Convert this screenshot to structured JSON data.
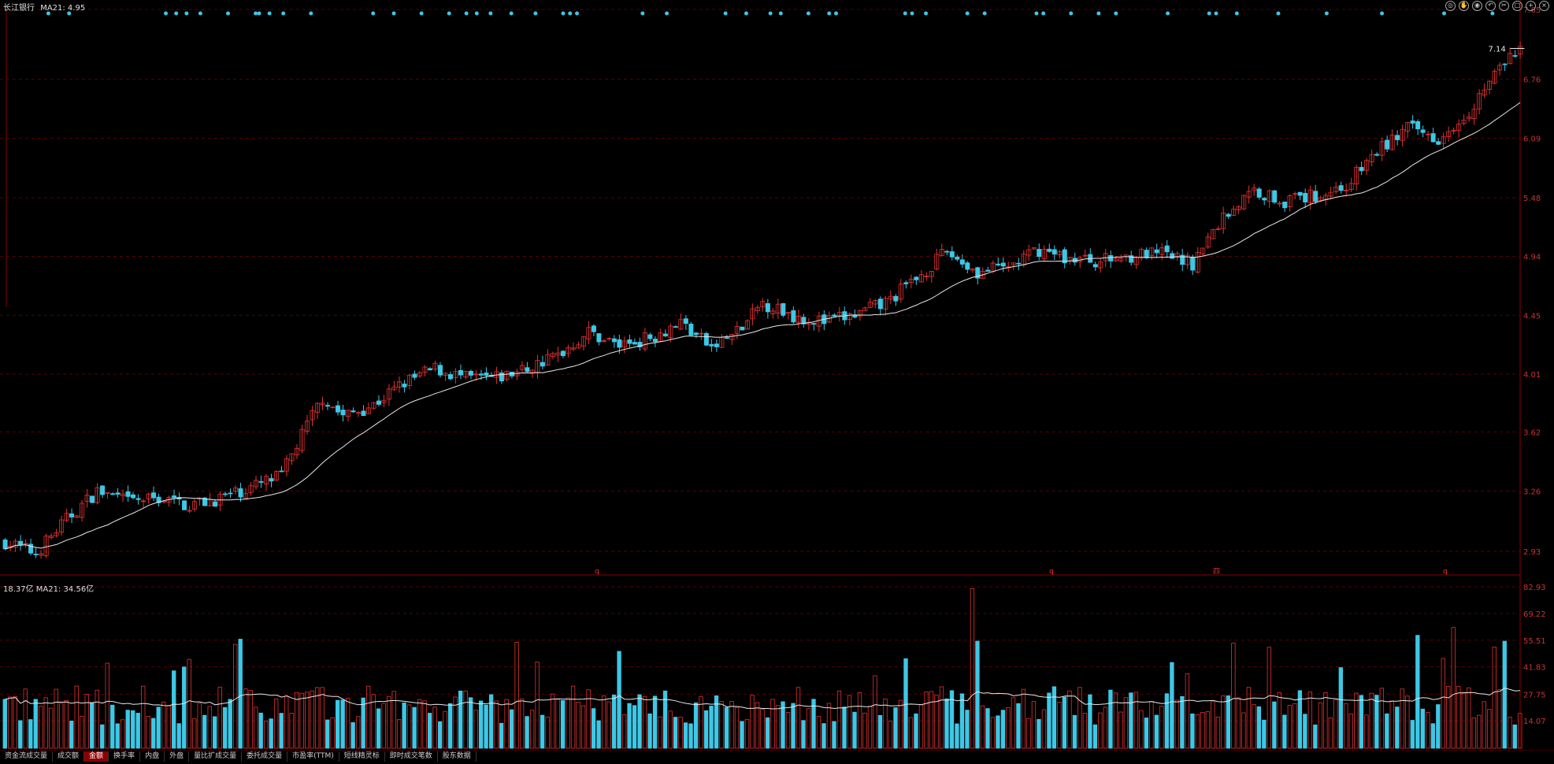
{
  "price_panel": {
    "title": "长江银行",
    "ma_label": "MA21: 4.95",
    "last_price_marker": "7.14",
    "y_ticks": [
      "7.65",
      "6.76",
      "6.09",
      "5.48",
      "4.94",
      "4.45",
      "4.01",
      "3.62",
      "3.26",
      "2.93"
    ],
    "period_marks": [
      "q",
      "q",
      "四",
      "q"
    ]
  },
  "volume_panel": {
    "header": "18.37亿 MA21: 34.56亿",
    "y_ticks": [
      "82.93",
      "69.22",
      "55.51",
      "41.83",
      "27.75",
      "14.07"
    ]
  },
  "tabs": [
    "资金流成交量",
    "成交额",
    "金额",
    "换手率",
    "内盘",
    "外盘",
    "量比扩成交量",
    "委托成交量",
    "市盈率(TTM)",
    "短线精灵标",
    "即时成交笔数",
    "股东数据"
  ],
  "active_tab_index": 2,
  "toolbar_icons": [
    "eye-icon",
    "hand-icon",
    "target-icon",
    "undo-icon",
    "scissors-icon",
    "square-icon",
    "plus-icon",
    "close-icon"
  ],
  "colors": {
    "up": "#e23232",
    "down": "#3cc8e6",
    "ma": "#e8e8e8",
    "grid": "#5a0000",
    "axis_text": "#c83232",
    "signal_dot": "#3cc8e6"
  },
  "chart_data": {
    "type": "candlestick",
    "title": "",
    "y_axis_scale": "log",
    "ylim": [
      2.93,
      7.65
    ],
    "volume_ylim": [
      0,
      82.93
    ],
    "trend_anchors": [
      [
        0,
        2.98
      ],
      [
        6,
        2.92
      ],
      [
        12,
        3.1
      ],
      [
        18,
        3.26
      ],
      [
        24,
        3.2
      ],
      [
        30,
        3.22
      ],
      [
        36,
        3.18
      ],
      [
        42,
        3.22
      ],
      [
        48,
        3.28
      ],
      [
        54,
        3.35
      ],
      [
        58,
        3.6
      ],
      [
        62,
        3.85
      ],
      [
        66,
        3.72
      ],
      [
        72,
        3.8
      ],
      [
        78,
        3.95
      ],
      [
        84,
        4.05
      ],
      [
        90,
        3.98
      ],
      [
        96,
        3.98
      ],
      [
        102,
        4.05
      ],
      [
        108,
        4.15
      ],
      [
        114,
        4.32
      ],
      [
        120,
        4.22
      ],
      [
        126,
        4.28
      ],
      [
        132,
        4.4
      ],
      [
        138,
        4.2
      ],
      [
        144,
        4.35
      ],
      [
        148,
        4.55
      ],
      [
        154,
        4.45
      ],
      [
        160,
        4.4
      ],
      [
        166,
        4.45
      ],
      [
        172,
        4.55
      ],
      [
        178,
        4.75
      ],
      [
        184,
        4.98
      ],
      [
        190,
        4.8
      ],
      [
        196,
        4.85
      ],
      [
        202,
        5.0
      ],
      [
        208,
        4.92
      ],
      [
        214,
        4.9
      ],
      [
        220,
        4.95
      ],
      [
        226,
        4.96
      ],
      [
        232,
        4.88
      ],
      [
        238,
        5.3
      ],
      [
        244,
        5.55
      ],
      [
        250,
        5.45
      ],
      [
        256,
        5.5
      ],
      [
        262,
        5.6
      ],
      [
        268,
        5.95
      ],
      [
        274,
        6.2
      ],
      [
        280,
        6.1
      ],
      [
        286,
        6.4
      ],
      [
        292,
        6.9
      ],
      [
        296,
        7.14
      ]
    ]
  }
}
